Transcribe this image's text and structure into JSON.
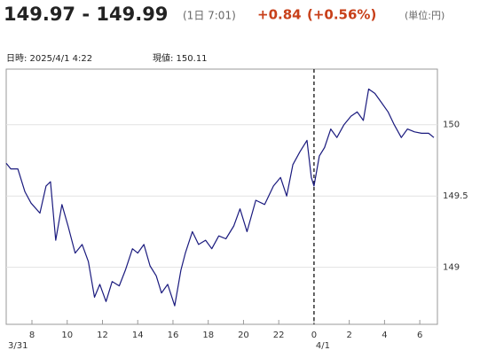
{
  "header": {
    "price_range": "149.97 - 149.99",
    "time": "(1日 7:01)",
    "change": "+0.84",
    "change_pct": "(+0.56%)",
    "unit": "(単位:円)"
  },
  "info": {
    "datetime": "日時: 2025/4/1  4:22",
    "current": "現値: 150.11"
  },
  "chart_data": {
    "type": "line",
    "x": [
      6.54,
      6.8,
      7.2,
      7.6,
      7.95,
      8.45,
      8.8,
      9.05,
      9.35,
      9.7,
      10.05,
      10.45,
      10.85,
      11.2,
      11.55,
      11.85,
      12.2,
      12.55,
      12.95,
      13.3,
      13.7,
      14.0,
      14.35,
      14.7,
      15.05,
      15.35,
      15.7,
      16.1,
      16.45,
      16.7,
      17.1,
      17.45,
      17.85,
      18.2,
      18.6,
      19.0,
      19.45,
      19.8,
      20.2,
      20.7,
      21.2,
      21.7,
      22.1,
      22.45,
      22.8,
      23.2,
      23.6,
      23.85,
      24.0,
      24.3,
      24.6,
      24.95,
      25.3,
      25.7,
      26.1,
      26.45,
      26.8,
      27.1,
      27.45,
      27.8,
      28.2,
      28.55,
      28.95,
      29.3,
      29.7,
      30.1,
      30.5,
      30.8
    ],
    "series": [
      {
        "color": "#1a1a7e",
        "values": [
          149.73,
          149.69,
          149.69,
          149.53,
          149.45,
          149.38,
          149.57,
          149.6,
          149.19,
          149.44,
          149.29,
          149.1,
          149.16,
          149.04,
          148.79,
          148.88,
          148.76,
          148.9,
          148.87,
          148.98,
          149.13,
          149.1,
          149.16,
          149.01,
          148.94,
          148.82,
          148.88,
          148.73,
          148.98,
          149.1,
          149.25,
          149.16,
          149.19,
          149.13,
          149.22,
          149.2,
          149.29,
          149.41,
          149.25,
          149.47,
          149.44,
          149.57,
          149.63,
          149.5,
          149.72,
          149.81,
          149.89,
          149.63,
          149.57,
          149.78,
          149.84,
          149.97,
          149.91,
          150.0,
          150.06,
          150.09,
          150.03,
          150.25,
          150.22,
          150.16,
          150.09,
          150.0,
          149.91,
          149.97,
          149.95,
          149.94,
          149.94,
          149.91
        ]
      }
    ],
    "xlim": [
      6.54,
      31.0
    ],
    "xticks": [
      8,
      10,
      12,
      14,
      16,
      18,
      20,
      22,
      {
        "value": 24,
        "label": "0"
      },
      {
        "value": 26,
        "label": "2"
      },
      {
        "value": 28,
        "label": "4"
      },
      {
        "value": 30,
        "label": "6"
      }
    ],
    "day_labels": [
      {
        "value": 6.54,
        "label": "3/31"
      },
      {
        "value": 24,
        "label": "4/1"
      }
    ],
    "divider": 24,
    "ylim": [
      148.6,
      150.39
    ],
    "yticks": [
      149,
      149.5,
      150
    ],
    "grid": true
  }
}
